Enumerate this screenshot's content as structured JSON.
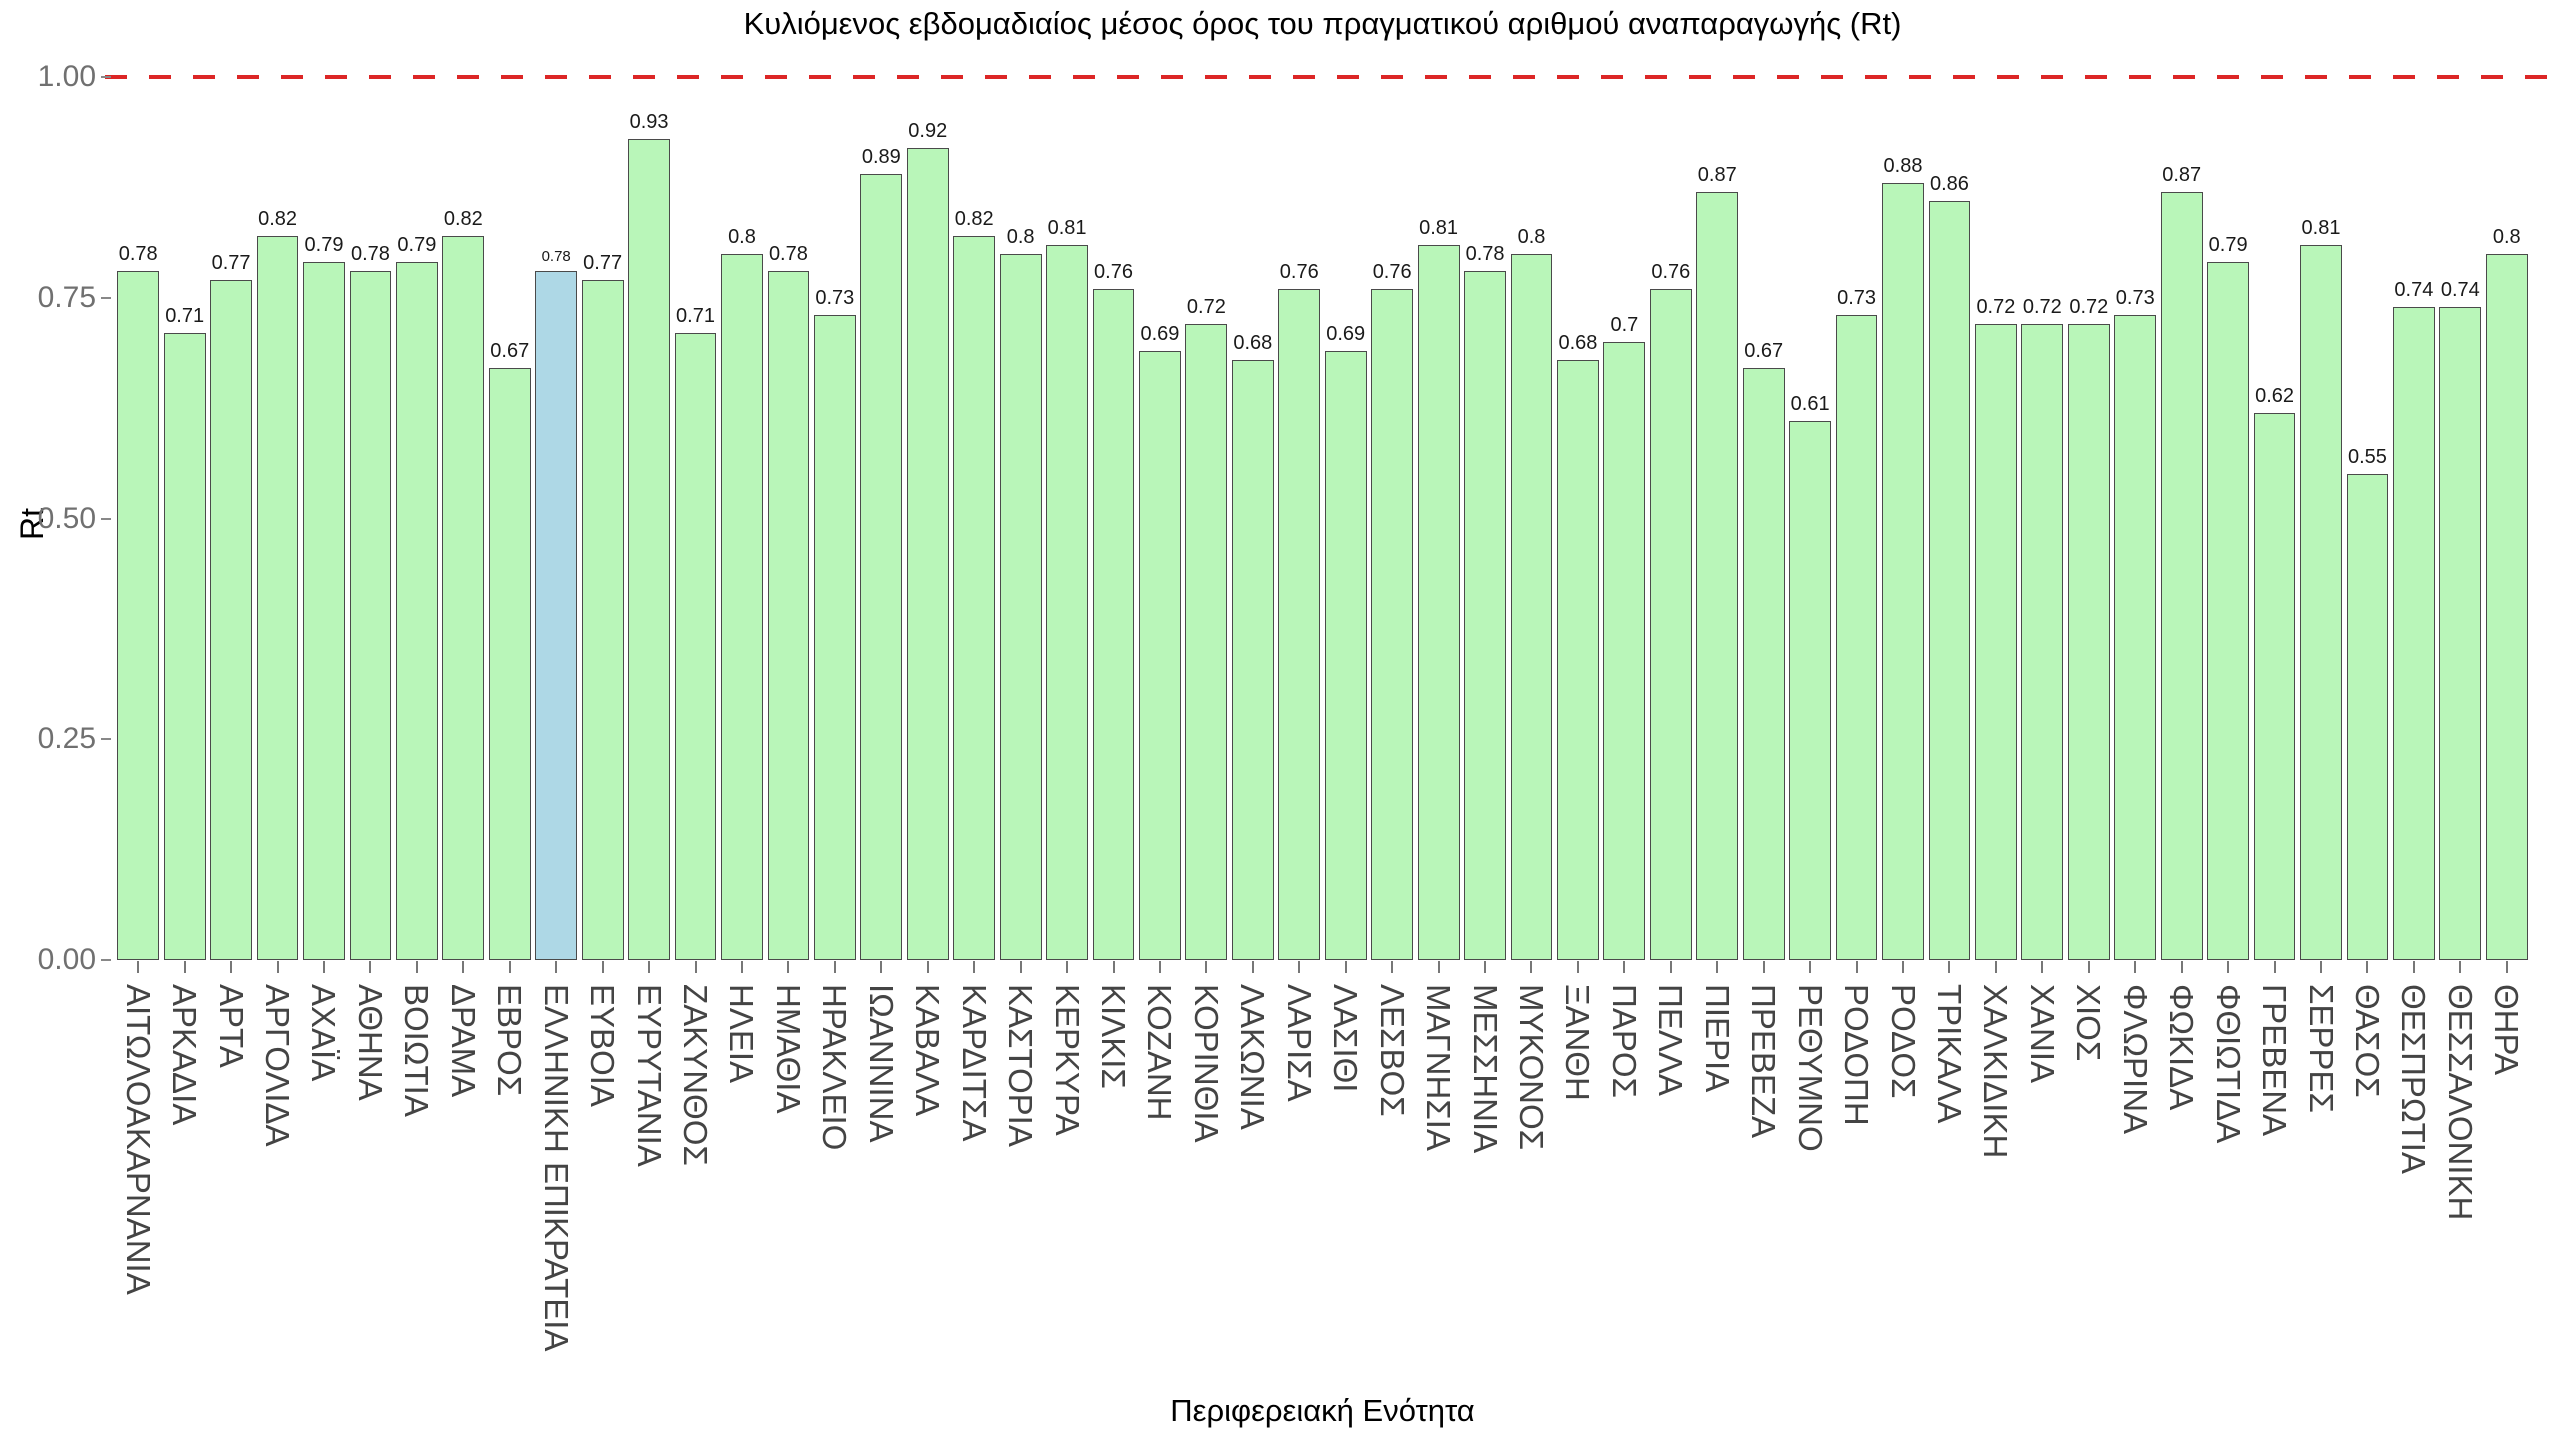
{
  "chart_data": {
    "type": "bar",
    "title": "Κυλιόμενος εβδομαδιαίος μέσος όρος του πραγματικού αριθμού αναπαραγωγής (Rt)",
    "xlabel": "Περιφερειακή Ενότητα",
    "ylabel": "Rt",
    "ylim": [
      0,
      1.0
    ],
    "yticks": [
      "0.00",
      "0.25",
      "0.50",
      "0.75",
      "1.00"
    ],
    "grid": false,
    "legend": "none",
    "reference_line": {
      "value": 1.0,
      "style": "dashed"
    },
    "categories": [
      "ΑΙΤΩΛΟΑΚΑΡΝΑΝΙΑ",
      "ΑΡΚΑΔΙΑ",
      "ΑΡΤΑ",
      "ΑΡΓΟΛΙΔΑ",
      "ΑΧΑΪΑ",
      "ΑΘΗΝΑ",
      "ΒΟΙΩΤΙΑ",
      "ΔΡΑΜΑ",
      "ΕΒΡΟΣ",
      "ΕΛΛΗΝΙΚΗ ΕΠΙΚΡΑΤΕΙΑ",
      "ΕΥΒΟΙΑ",
      "ΕΥΡΥΤΑΝΙΑ",
      "ΖΑΚΥΝΘΟΣ",
      "ΗΛΕΙΑ",
      "ΗΜΑΘΙΑ",
      "ΗΡΑΚΛΕΙΟ",
      "ΙΩΑΝΝΙΝΑ",
      "ΚΑΒΑΛΑ",
      "ΚΑΡΔΙΤΣΑ",
      "ΚΑΣΤΟΡΙΑ",
      "ΚΕΡΚΥΡΑ",
      "ΚΙΛΚΙΣ",
      "ΚΟΖΑΝΗ",
      "ΚΟΡΙΝΘΙΑ",
      "ΛΑΚΩΝΙΑ",
      "ΛΑΡΙΣΑ",
      "ΛΑΣΙΘΙ",
      "ΛΕΣΒΟΣ",
      "ΜΑΓΝΗΣΙΑ",
      "ΜΕΣΣΗΝΙΑ",
      "ΜΥΚΟΝΟΣ",
      "ΞΑΝΘΗ",
      "ΠΑΡΟΣ",
      "ΠΕΛΛΑ",
      "ΠΙΕΡΙΑ",
      "ΠΡΕΒΕΖΑ",
      "ΡΕΘΥΜΝΟ",
      "ΡΟΔΟΠΗ",
      "ΡΟΔΟΣ",
      "ΤΡΙΚΑΛΑ",
      "ΧΑΛΚΙΔΙΚΗ",
      "ΧΑΝΙΑ",
      "ΧΙΟΣ",
      "ΦΛΩΡΙΝΑ",
      "ΦΩΚΙΔΑ",
      "ΦΘΙΩΤΙΔΑ",
      "ΓΡΕΒΕΝΑ",
      "ΣΕΡΡΕΣ",
      "ΘΑΣΟΣ",
      "ΘΕΣΠΡΩΤΙΑ",
      "ΘΕΣΣΑΛΟΝΙΚΗ",
      "ΘΗΡΑ"
    ],
    "values": [
      0.78,
      0.71,
      0.77,
      0.82,
      0.79,
      0.78,
      0.79,
      0.82,
      0.67,
      0.78,
      0.77,
      0.93,
      0.71,
      0.8,
      0.78,
      0.73,
      0.89,
      0.92,
      0.82,
      0.8,
      0.81,
      0.76,
      0.69,
      0.72,
      0.68,
      0.76,
      0.69,
      0.76,
      0.81,
      0.78,
      0.8,
      0.68,
      0.7,
      0.76,
      0.87,
      0.67,
      0.61,
      0.73,
      0.88,
      0.86,
      0.72,
      0.72,
      0.72,
      0.73,
      0.87,
      0.79,
      0.62,
      0.81,
      0.55,
      0.74,
      0.74,
      0.8
    ],
    "value_labels": [
      "0.78",
      "0.71",
      "0.77",
      "0.82",
      "0.79",
      "0.78",
      "0.79",
      "0.82",
      "0.67",
      "0.78",
      "0.77",
      "0.93",
      "0.71",
      "0.8",
      "0.78",
      "0.73",
      "0.89",
      "0.92",
      "0.82",
      "0.8",
      "0.81",
      "0.76",
      "0.69",
      "0.72",
      "0.68",
      "0.76",
      "0.69",
      "0.76",
      "0.81",
      "0.78",
      "0.8",
      "0.68",
      "0.7",
      "0.76",
      "0.87",
      "0.67",
      "0.61",
      "0.73",
      "0.88",
      "0.86",
      "0.72",
      "0.72",
      "0.72",
      "0.73",
      "0.87",
      "0.79",
      "0.62",
      "0.81",
      "0.55",
      "0.74",
      "0.74",
      "0.8"
    ],
    "highlight_category": "ΕΛΛΗΝΙΚΗ ΕΠΙΚΡΑΤΕΙΑ",
    "colors": {
      "bar_fill": "#b9f6b9",
      "highlight_fill": "#aed8e6",
      "bar_border": "#4a4a4a",
      "reference_line": "#dc2626",
      "x_tick_label": "#444444",
      "y_tick_label": "#707070"
    }
  }
}
